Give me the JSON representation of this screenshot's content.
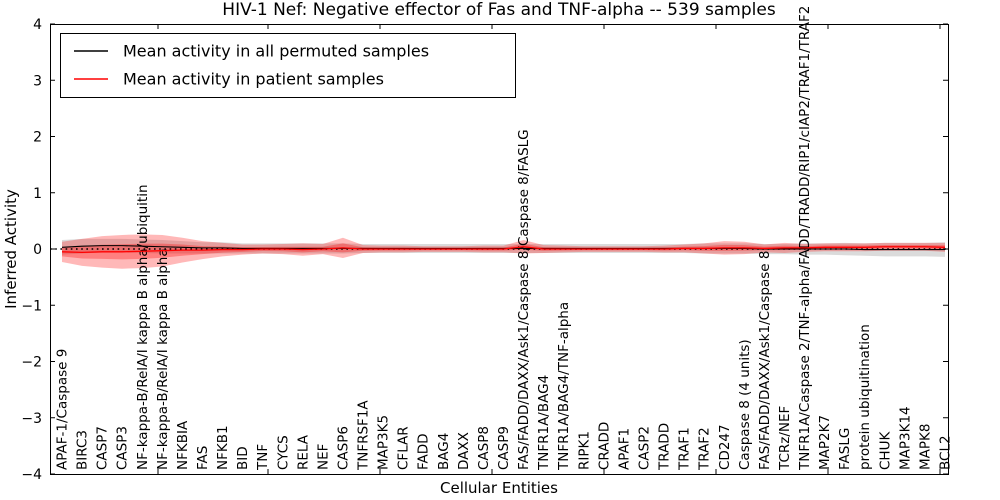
{
  "figure": {
    "title": "HIV-1 Nef: Negative effector of Fas and TNF-alpha -- 539 samples"
  },
  "chart_data": {
    "type": "line",
    "title": "HIV-1 Nef: Negative effector of Fas and TNF-alpha -- 539 samples",
    "xlabel": "Cellular Entities",
    "ylabel": "Inferred Activity",
    "ylim": [
      -4,
      4
    ],
    "yticks": [
      -4,
      -3,
      -2,
      -1,
      0,
      1,
      2,
      3,
      4
    ],
    "grid": false,
    "zero_line": "dotted",
    "legend_position": "upper left",
    "colors": {
      "permuted_line": "#000000",
      "patient_line": "#ff0000",
      "permuted_band": "#999999",
      "patient_band": "#ff0000",
      "axis": "#000000",
      "background": "#ffffff"
    },
    "categories": [
      "APAF-1/Caspase 9",
      "BIRC3",
      "CASP7",
      "CASP3",
      "NF-kappa-B/RelA/I kappa B alpha/ubiquitin",
      "NF-kappa-B/RelA/I kappa B alpha",
      "NFKBIA",
      "FAS",
      "NFKB1",
      "BID",
      "TNF",
      "CYCS",
      "RELA",
      "NEF",
      "CASP6",
      "TNFRSF1A",
      "MAP3K5",
      "CFLAR",
      "FADD",
      "BAG4",
      "DAXX",
      "CASP8",
      "CASP9",
      "FAS/FADD/DAXX/Ask1/Caspase 8/Caspase 8/FASLG",
      "TNFR1A/BAG4",
      "TNFR1A/BAG4/TNF-alpha",
      "RIPK1",
      "CRADD",
      "APAF1",
      "CASP2",
      "TRADD",
      "TRAF1",
      "TRAF2",
      "CD247",
      "Caspase 8 (4 units)",
      "FAS/FADD/DAXX/Ask1/Caspase 8",
      "TCRz/NEF",
      "TNFR1A/Caspase 2/TNF-alpha/FADD/TRADD/RIP1/cIAP2/TRAF1/TRAF2",
      "MAP2K7",
      "FASLG",
      "protein ubiquitination",
      "CHUK",
      "MAP3K14",
      "MAPK8",
      "BCL2"
    ],
    "series": [
      {
        "name": "Mean activity in all permuted samples",
        "color": "#000000",
        "mean": [
          0.03,
          0.05,
          0.06,
          0.06,
          0.05,
          0.04,
          0.03,
          0.02,
          0.02,
          0.01,
          0.01,
          0.01,
          0.01,
          0.01,
          0.01,
          0.01,
          0.01,
          0.01,
          0.01,
          0.01,
          0.01,
          0.01,
          0.01,
          0.01,
          0.01,
          0.01,
          0.01,
          0.01,
          0.01,
          0.01,
          0.01,
          0.01,
          0.01,
          0.01,
          0.01,
          0.0,
          0.0,
          0.0,
          0.0,
          0.0,
          -0.01,
          -0.01,
          -0.01,
          -0.01,
          -0.01
        ],
        "std": [
          0.13,
          0.13,
          0.12,
          0.12,
          0.12,
          0.12,
          0.11,
          0.1,
          0.1,
          0.09,
          0.09,
          0.09,
          0.09,
          0.09,
          0.09,
          0.08,
          0.08,
          0.08,
          0.08,
          0.08,
          0.08,
          0.08,
          0.08,
          0.08,
          0.08,
          0.08,
          0.08,
          0.08,
          0.08,
          0.08,
          0.08,
          0.08,
          0.09,
          0.09,
          0.09,
          0.09,
          0.09,
          0.1,
          0.1,
          0.11,
          0.11,
          0.12,
          0.12,
          0.12,
          0.13
        ]
      },
      {
        "name": "Mean activity in patient samples",
        "color": "#ff0000",
        "mean": [
          -0.05,
          -0.06,
          -0.05,
          -0.05,
          -0.04,
          -0.03,
          -0.02,
          -0.02,
          -0.01,
          -0.01,
          0.0,
          0.0,
          -0.01,
          0.0,
          0.02,
          0.0,
          0.0,
          0.0,
          0.0,
          0.0,
          0.0,
          0.0,
          0.0,
          0.04,
          0.0,
          0.0,
          0.0,
          0.0,
          0.0,
          0.0,
          0.0,
          0.01,
          0.01,
          0.02,
          0.02,
          0.01,
          0.02,
          0.02,
          0.03,
          0.03,
          0.03,
          0.04,
          0.04,
          0.04,
          0.03
        ],
        "std": [
          0.18,
          0.24,
          0.28,
          0.3,
          0.3,
          0.28,
          0.22,
          0.16,
          0.12,
          0.09,
          0.08,
          0.09,
          0.11,
          0.09,
          0.18,
          0.07,
          0.06,
          0.06,
          0.05,
          0.05,
          0.05,
          0.06,
          0.06,
          0.12,
          0.07,
          0.06,
          0.05,
          0.05,
          0.05,
          0.05,
          0.06,
          0.07,
          0.09,
          0.12,
          0.11,
          0.07,
          0.09,
          0.07,
          0.07,
          0.07,
          0.07,
          0.07,
          0.07,
          0.07,
          0.08
        ]
      }
    ]
  }
}
